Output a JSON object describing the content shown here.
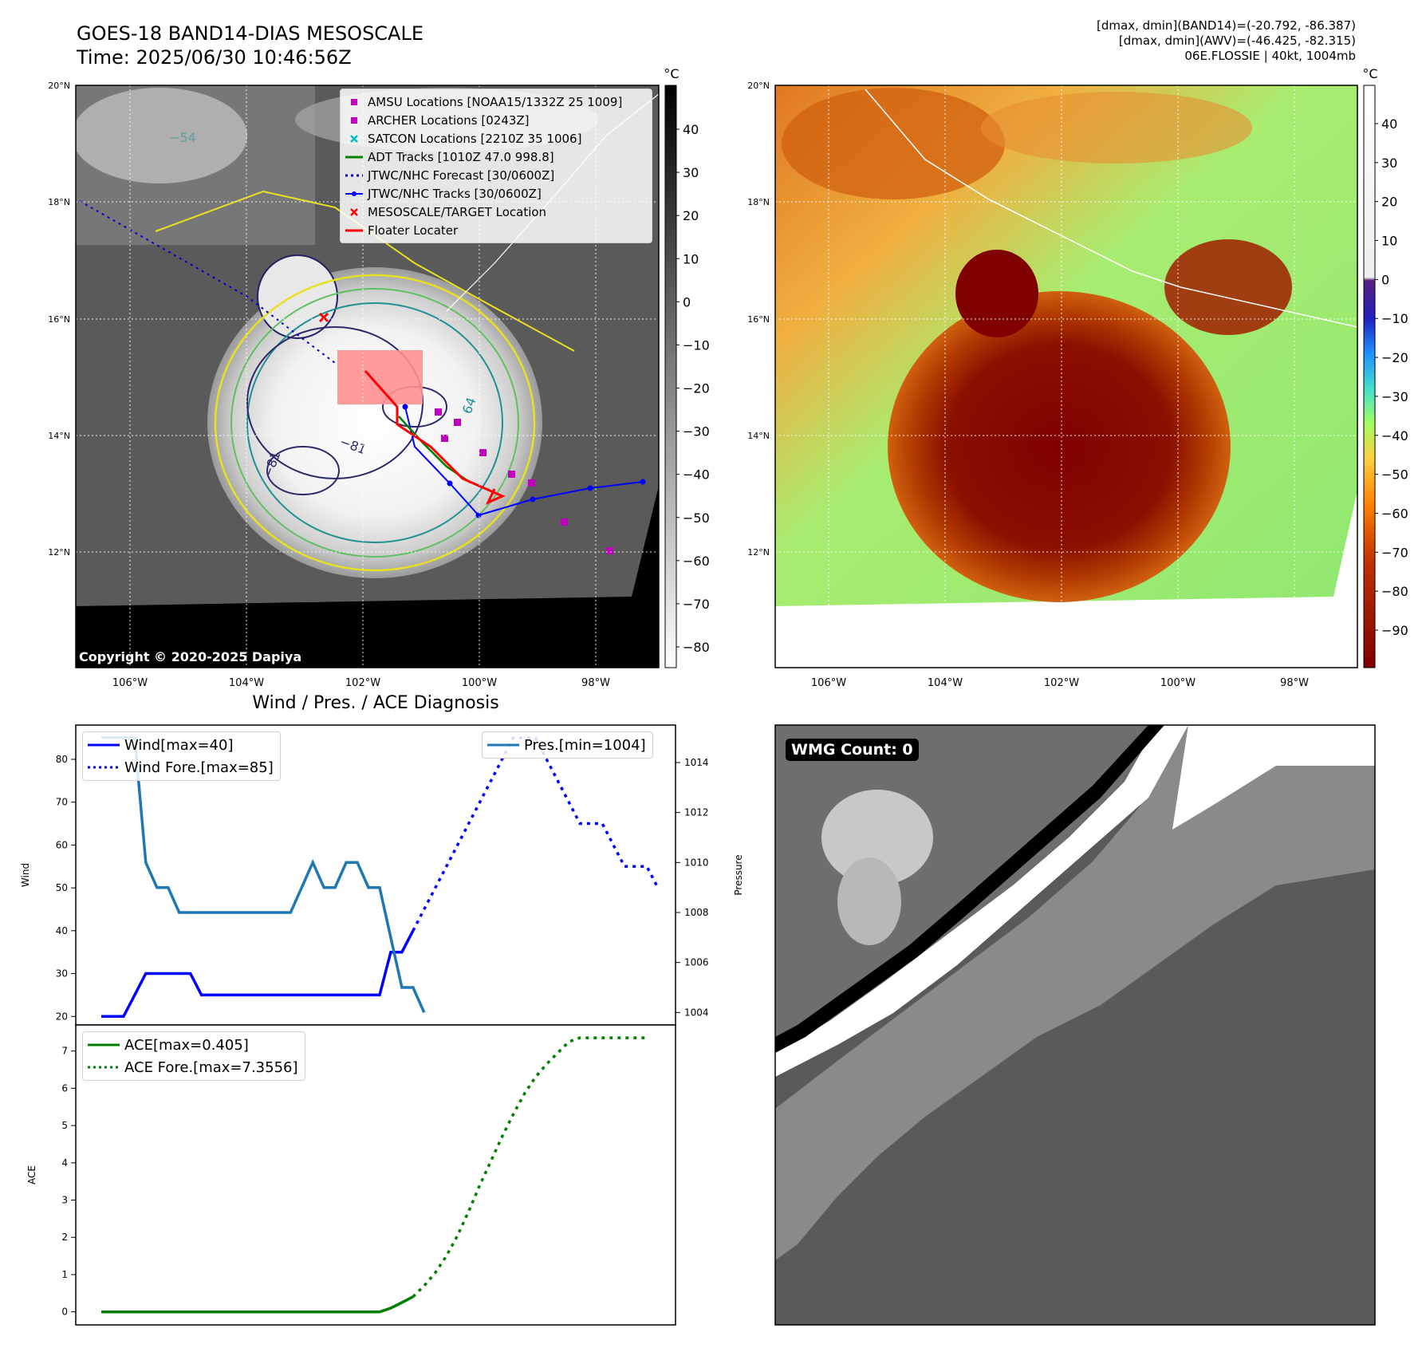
{
  "header": {
    "title_line1": "GOES-18 BAND14-DIAS MESOSCALE",
    "title_line2": "Time: 2025/06/30 10:46:56Z",
    "info_line1": "[dmax, dmin](BAND14)=(-20.792, -86.387)",
    "info_line2": "[dmax, dmin](AWV)=(-46.425, -82.315)",
    "info_line3": "06E.FLOSSIE | 40kt, 1004mb"
  },
  "map_axes": {
    "lat_labels": [
      "20°N",
      "18°N",
      "16°N",
      "14°N",
      "12°N"
    ],
    "lon_labels": [
      "106°W",
      "104°W",
      "102°W",
      "100°W",
      "98°W"
    ]
  },
  "colorbar_gray": {
    "unit": "°C",
    "ticks": [
      "40",
      "30",
      "20",
      "10",
      "0",
      "−10",
      "−20",
      "−30",
      "−40",
      "−50",
      "−60",
      "−70",
      "−80"
    ]
  },
  "colorbar_awv": {
    "unit": "°C",
    "ticks": [
      "40",
      "30",
      "20",
      "10",
      "0",
      "−10",
      "−20",
      "−30",
      "−40",
      "−50",
      "−60",
      "−70",
      "−80",
      "−90"
    ]
  },
  "map_legend": [
    {
      "label": "AMSU Locations [NOAA15/1332Z 25 1009]",
      "symbol": "square",
      "color": "#bf00bf"
    },
    {
      "label": "ARCHER Locations [0243Z]",
      "symbol": "square",
      "color": "#bf00bf"
    },
    {
      "label": "SATCON Locations [2210Z 35 1006]",
      "symbol": "x",
      "color": "#00bfbf"
    },
    {
      "label": "ADT Tracks [1010Z 47.0 998.8]",
      "symbol": "line",
      "color": "#008000"
    },
    {
      "label": "JTWC/NHC Forecast [30/0600Z]",
      "symbol": "dotted",
      "color": "#0000cc"
    },
    {
      "label": "JTWC/NHC Tracks [30/0600Z]",
      "symbol": "line-dot",
      "color": "#0000ff"
    },
    {
      "label": "MESOSCALE/TARGET Location",
      "symbol": "x",
      "color": "#ff0000"
    },
    {
      "label": "Floater Locater",
      "symbol": "line",
      "color": "#ff0000"
    }
  ],
  "contour_labels": [
    "−54",
    "−81",
    "−81",
    "64"
  ],
  "copyright": "Copyright © 2020-2025 Dapiya",
  "wmg_label": "WMG Count: 0",
  "chart_data": [
    {
      "type": "line",
      "title": "Wind / Pres. / ACE Diagnosis",
      "ylabel": "Wind",
      "ylim": [
        18,
        88
      ],
      "y_ticks": [
        "80",
        "70",
        "60",
        "50",
        "40",
        "30",
        "20"
      ],
      "series": [
        {
          "name": "Wind[max=40]",
          "style": "solid",
          "color": "#0000ff",
          "values": [
            20,
            20,
            20,
            25,
            30,
            30,
            30,
            30,
            30,
            25,
            25,
            25,
            25,
            25,
            25,
            25,
            25,
            25,
            25,
            25,
            25,
            25,
            25,
            25,
            25,
            25,
            35,
            35,
            40
          ]
        },
        {
          "name": "Wind Fore.[max=85]",
          "style": "dotted",
          "color": "#0000ff",
          "values": [
            null,
            null,
            null,
            null,
            null,
            null,
            null,
            null,
            null,
            null,
            null,
            null,
            null,
            null,
            null,
            null,
            null,
            null,
            null,
            null,
            null,
            null,
            null,
            null,
            null,
            null,
            null,
            null,
            40,
            45,
            50,
            55,
            60,
            65,
            70,
            75,
            80,
            85,
            85,
            85,
            80,
            75,
            70,
            65,
            65,
            65,
            60,
            55,
            55,
            55,
            50
          ]
        }
      ],
      "secondary_axis": {
        "ylabel": "Pressure",
        "ylim": [
          1003.5,
          1015.5
        ],
        "y_ticks": [
          "1014",
          "1012",
          "1010",
          "1008",
          "1006",
          "1004"
        ],
        "series": [
          {
            "name": "Pres.[min=1004]",
            "style": "solid",
            "color": "#1f77b4",
            "values": [
              1015,
              1015,
              1015,
              1015,
              1010,
              1009,
              1009,
              1008,
              1008,
              1008,
              1008,
              1008,
              1008,
              1008,
              1008,
              1008,
              1008,
              1008,
              1009,
              1010,
              1009,
              1009,
              1010,
              1010,
              1009,
              1009,
              1007,
              1005,
              1005,
              1004
            ]
          }
        ]
      }
    },
    {
      "type": "line",
      "ylabel": "ACE",
      "ylim": [
        -0.35,
        7.7
      ],
      "y_ticks": [
        "7",
        "6",
        "5",
        "4",
        "3",
        "2",
        "1",
        "0"
      ],
      "series": [
        {
          "name": "ACE[max=0.405]",
          "style": "solid",
          "color": "#008000",
          "values": [
            0,
            0,
            0,
            0,
            0,
            0,
            0,
            0,
            0,
            0,
            0,
            0,
            0,
            0,
            0,
            0,
            0,
            0,
            0,
            0,
            0,
            0,
            0,
            0,
            0,
            0,
            0.1,
            0.25,
            0.405
          ]
        },
        {
          "name": "ACE Fore.[max=7.3556]",
          "style": "dotted",
          "color": "#008000",
          "values": [
            null,
            null,
            null,
            null,
            null,
            null,
            null,
            null,
            null,
            null,
            null,
            null,
            null,
            null,
            null,
            null,
            null,
            null,
            null,
            null,
            null,
            null,
            null,
            null,
            null,
            null,
            null,
            null,
            0.405,
            0.7,
            1.05,
            1.5,
            2.05,
            2.7,
            3.4,
            4.05,
            4.7,
            5.3,
            5.85,
            6.3,
            6.65,
            6.95,
            7.25,
            7.3556,
            7.3556,
            7.3556,
            7.3556,
            7.3556,
            7.3556,
            7.3556
          ]
        }
      ]
    }
  ]
}
